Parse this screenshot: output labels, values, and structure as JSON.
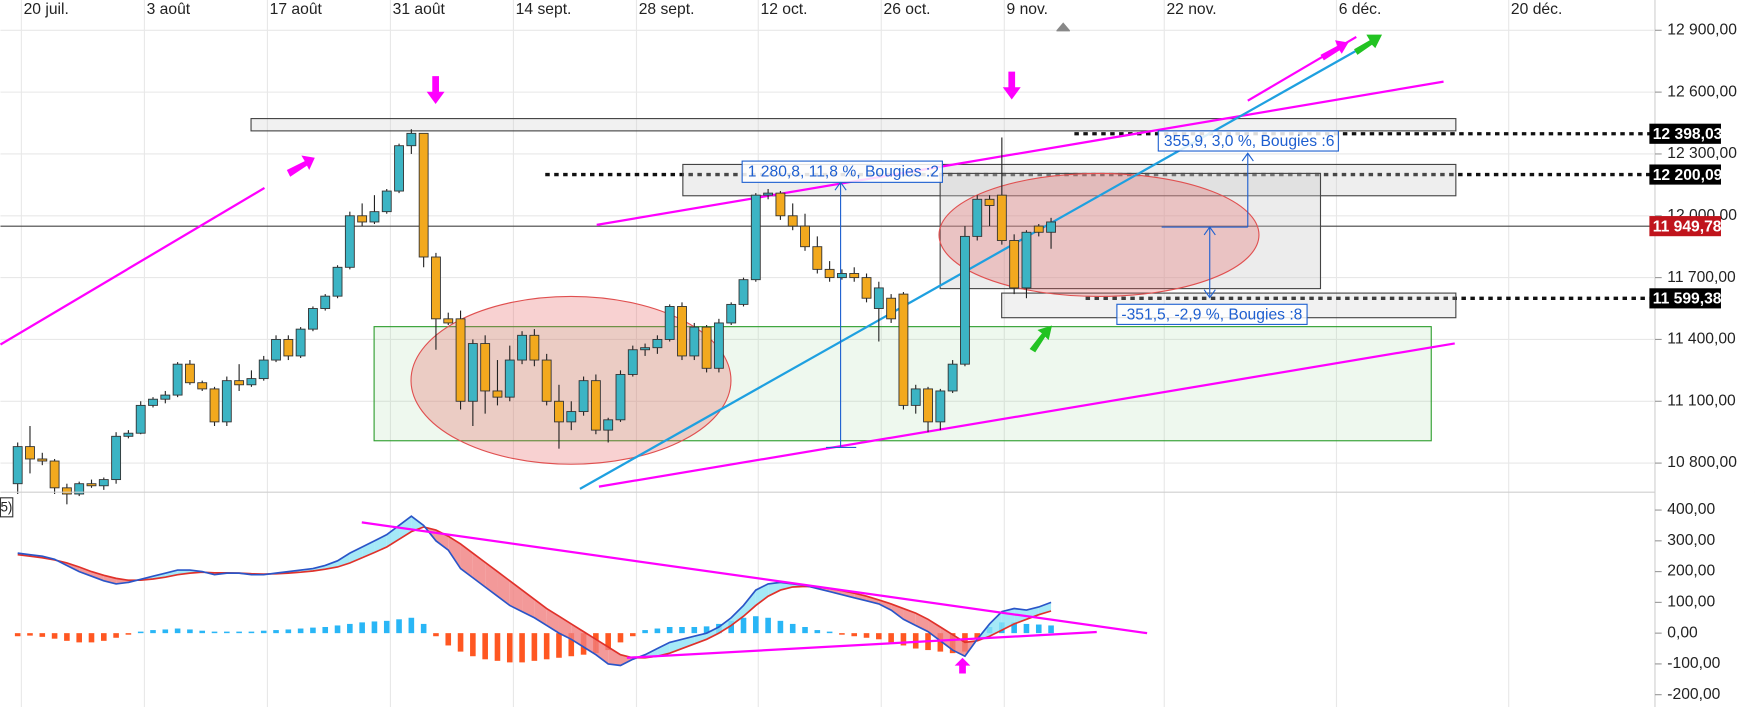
{
  "chart_data": [
    {
      "type": "candlestick",
      "xlim": [
        -1.4,
        133
      ],
      "xticks": [
        {
          "value": 0.3,
          "label": "20 juil."
        },
        {
          "value": 10.3,
          "label": "3 août"
        },
        {
          "value": 20.3,
          "label": "17 août"
        },
        {
          "value": 30.3,
          "label": "31 août"
        },
        {
          "value": 40.3,
          "label": "14 sept."
        },
        {
          "value": 50.3,
          "label": "28 sept."
        },
        {
          "value": 60.2,
          "label": "12 oct."
        },
        {
          "value": 70.2,
          "label": "26 oct."
        },
        {
          "value": 80.2,
          "label": "9 nov."
        },
        {
          "value": 93.2,
          "label": "22 nov."
        },
        {
          "value": 107.2,
          "label": "6 déc."
        },
        {
          "value": 121.2,
          "label": "20 déc."
        }
      ],
      "ylim": [
        10675,
        13047
      ],
      "yticks": [
        {
          "value": 10800,
          "label": "10 800,00"
        },
        {
          "value": 11100,
          "label": "11 100,00"
        },
        {
          "value": 11400,
          "label": "11 400,00"
        },
        {
          "value": 11700,
          "label": "11 700,00"
        },
        {
          "value": 12000,
          "label": "12 000,00"
        },
        {
          "value": 12300,
          "label": "12 300,00"
        },
        {
          "value": 12600,
          "label": "12 600,00"
        },
        {
          "value": 12900,
          "label": "12 900,00"
        }
      ],
      "grid": true,
      "up_color": "#3cb4c4",
      "down_color": "#f2a91e",
      "open": [
        10700,
        10880,
        10820,
        10810,
        10680,
        10650,
        10700,
        10690,
        10720,
        10930,
        10945,
        11080,
        11110,
        11130,
        11280,
        11190,
        11160,
        11000,
        11200,
        11180,
        11210,
        11300,
        11400,
        11320,
        11450,
        11550,
        11610,
        11750,
        12000,
        11970,
        12020,
        12120,
        12340,
        12400,
        11800,
        11500,
        11500,
        11100,
        11380,
        11150,
        11120,
        11300,
        11420,
        11300,
        11100,
        11000,
        11050,
        11200,
        10960,
        11010,
        11230,
        11350,
        11360,
        11400,
        11560,
        11320,
        11460,
        11260,
        11480,
        11570,
        11690,
        12100,
        12110,
        12000,
        11950,
        11850,
        11740,
        11700,
        11720,
        11700,
        11550,
        11600,
        11620,
        11080,
        11160,
        11000,
        11150,
        11280,
        11900,
        12080,
        12100,
        11880,
        11650,
        11950,
        11920
      ],
      "high": [
        10900,
        10980,
        10850,
        10820,
        10700,
        10710,
        10720,
        10730,
        10950,
        10960,
        11100,
        11120,
        11150,
        11290,
        11300,
        11200,
        11170,
        11220,
        11280,
        11250,
        11320,
        11420,
        11420,
        11460,
        11560,
        11620,
        11760,
        12020,
        12060,
        12100,
        12130,
        12350,
        12420,
        12400,
        11820,
        11530,
        11540,
        11400,
        11420,
        11300,
        11370,
        11440,
        11450,
        11330,
        11180,
        11100,
        11220,
        11230,
        11020,
        11250,
        11370,
        11380,
        11420,
        11570,
        11580,
        11480,
        11470,
        11500,
        11580,
        11700,
        12110,
        12130,
        12120,
        12060,
        12010,
        11900,
        11780,
        11740,
        11750,
        11720,
        11680,
        11620,
        11630,
        11180,
        11170,
        11160,
        11300,
        11950,
        12100,
        12100,
        12380,
        11910,
        11930,
        11960,
        11990
      ],
      "low": [
        10650,
        10750,
        10790,
        10650,
        10600,
        10640,
        10680,
        10670,
        10700,
        10920,
        10940,
        11070,
        11090,
        11120,
        11180,
        11150,
        10980,
        10980,
        11150,
        11170,
        11200,
        11290,
        11300,
        11310,
        11440,
        11540,
        11600,
        11740,
        11950,
        11960,
        12010,
        12110,
        12300,
        11750,
        11350,
        11470,
        11060,
        10980,
        11040,
        11080,
        11100,
        11280,
        11270,
        11080,
        10870,
        10960,
        11030,
        10940,
        10900,
        11000,
        11220,
        11320,
        11330,
        11390,
        11300,
        11300,
        11240,
        11240,
        11470,
        11560,
        11680,
        12080,
        11980,
        11930,
        11830,
        11720,
        11680,
        11690,
        11680,
        11580,
        11390,
        11480,
        11060,
        11040,
        10950,
        10960,
        11140,
        11270,
        11880,
        11950,
        11860,
        11620,
        11600,
        11900,
        11840
      ],
      "close": [
        10880,
        10820,
        10810,
        10680,
        10650,
        10700,
        10690,
        10720,
        10930,
        10945,
        11080,
        11110,
        11130,
        11280,
        11190,
        11160,
        11000,
        11200,
        11180,
        11210,
        11300,
        11400,
        11320,
        11450,
        11550,
        11610,
        11750,
        12000,
        11970,
        12020,
        12120,
        12340,
        12400,
        11800,
        11500,
        11480,
        11100,
        11380,
        11150,
        11120,
        11300,
        11420,
        11300,
        11100,
        11000,
        11050,
        11200,
        10960,
        11010,
        11230,
        11350,
        11360,
        11400,
        11560,
        11320,
        11460,
        11260,
        11480,
        11570,
        11690,
        12100,
        12110,
        12000,
        11950,
        11850,
        11740,
        11700,
        11720,
        11700,
        11600,
        11650,
        11500,
        11080,
        11160,
        11000,
        11150,
        11280,
        11900,
        12080,
        12050,
        11880,
        11650,
        11920,
        11920,
        11970
      ],
      "levels": [
        {
          "value": 12398.03,
          "label": "12 398,03",
          "color": "#000000",
          "line": "dotted"
        },
        {
          "value": 12200.09,
          "label": "12 200,09",
          "color": "#000000",
          "line": "dotted"
        },
        {
          "value": 11949.78,
          "label": "11 949,78",
          "color": "#c0141c",
          "line": "solid"
        },
        {
          "value": 11599.38,
          "label": "11 599,38",
          "color": "#000000",
          "line": "dotted"
        }
      ],
      "annotations": [
        "1 280,8, 11,8 %, Bougies :2",
        "355,9, 3,0 %, Bougies :6",
        "-351,5, -2,9 %, Bougies :8"
      ]
    },
    {
      "type": "macd",
      "label": "5)",
      "xlim": [
        -1.4,
        133
      ],
      "ylim": [
        -240,
        458
      ],
      "yticks": [
        {
          "value": -200,
          "label": "-200,00"
        },
        {
          "value": -100,
          "label": "-100,00"
        },
        {
          "value": 0,
          "label": "0,00"
        },
        {
          "value": 100,
          "label": "100,00"
        },
        {
          "value": 200,
          "label": "200,00"
        },
        {
          "value": 300,
          "label": "300,00"
        },
        {
          "value": 400,
          "label": "400,00"
        }
      ],
      "macd_color": "#2a55c8",
      "signal_color": "#e0312a",
      "fill_up_color": "#8fe3f5",
      "fill_down_color": "#f08080",
      "hist_up_color": "#29b6f6",
      "hist_down_color": "#ff5722",
      "macd": [
        260,
        255,
        250,
        240,
        220,
        200,
        185,
        170,
        160,
        165,
        175,
        185,
        195,
        205,
        205,
        200,
        190,
        195,
        195,
        190,
        190,
        195,
        200,
        205,
        210,
        220,
        235,
        260,
        280,
        300,
        320,
        350,
        380,
        350,
        300,
        270,
        210,
        180,
        150,
        120,
        90,
        70,
        50,
        25,
        0,
        -20,
        -45,
        -70,
        -100,
        -105,
        -85,
        -70,
        -50,
        -30,
        -20,
        -10,
        0,
        20,
        50,
        90,
        140,
        160,
        165,
        160,
        155,
        145,
        135,
        125,
        115,
        105,
        95,
        75,
        45,
        25,
        5,
        -25,
        -55,
        -75,
        -20,
        30,
        70,
        80,
        75,
        85,
        100
      ],
      "signal": [
        255,
        250,
        245,
        238,
        228,
        215,
        200,
        188,
        178,
        172,
        172,
        176,
        182,
        190,
        195,
        198,
        196,
        196,
        195,
        193,
        192,
        193,
        195,
        198,
        202,
        208,
        215,
        228,
        245,
        262,
        280,
        305,
        330,
        345,
        335,
        315,
        290,
        260,
        230,
        200,
        170,
        140,
        110,
        80,
        55,
        30,
        5,
        -20,
        -45,
        -70,
        -80,
        -80,
        -75,
        -65,
        -50,
        -35,
        -20,
        0,
        25,
        55,
        90,
        120,
        140,
        150,
        152,
        150,
        145,
        138,
        130,
        120,
        108,
        95,
        80,
        65,
        45,
        20,
        -5,
        -30,
        -25,
        -10,
        10,
        30,
        45,
        60,
        72
      ],
      "histogram": [
        -10,
        -8,
        -12,
        -18,
        -25,
        -30,
        -30,
        -25,
        -15,
        -5,
        5,
        10,
        12,
        15,
        12,
        8,
        5,
        5,
        5,
        5,
        8,
        10,
        12,
        15,
        18,
        20,
        25,
        30,
        35,
        38,
        40,
        45,
        50,
        30,
        -10,
        -40,
        -60,
        -75,
        -85,
        -90,
        -95,
        -95,
        -90,
        -85,
        -80,
        -75,
        -70,
        -65,
        -55,
        -30,
        -10,
        10,
        15,
        20,
        20,
        20,
        22,
        30,
        40,
        50,
        55,
        50,
        40,
        30,
        20,
        10,
        5,
        -5,
        -10,
        -15,
        -20,
        -30,
        -40,
        -50,
        -55,
        -60,
        -65,
        -60,
        -20,
        20,
        35,
        35,
        30,
        28,
        25
      ]
    }
  ]
}
